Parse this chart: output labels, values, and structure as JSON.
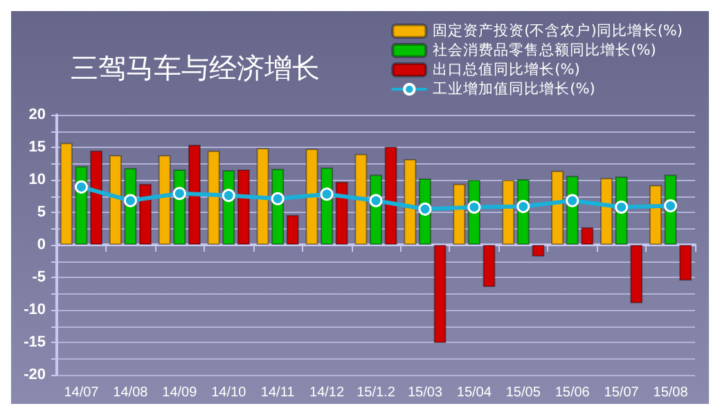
{
  "chart_data": {
    "type": "bar",
    "title": "三驾马车与经济增长",
    "categories": [
      "14/07",
      "14/08",
      "14/09",
      "14/10",
      "14/11",
      "14/12",
      "15/1.2",
      "15/03",
      "15/04",
      "15/05",
      "15/06",
      "15/07",
      "15/08"
    ],
    "series": [
      {
        "name": "固定资产投资(不含农户)同比增长(%)",
        "color": "#f5b000",
        "values": [
          15.7,
          13.8,
          13.8,
          14.5,
          14.9,
          14.8,
          14.0,
          13.2,
          9.4,
          10.0,
          11.4,
          10.3,
          9.2
        ]
      },
      {
        "name": "社会消费品零售总额同比增长(%)",
        "color": "#00c000",
        "values": [
          12.1,
          11.8,
          11.6,
          11.5,
          11.7,
          11.9,
          10.8,
          10.2,
          10.0,
          10.1,
          10.6,
          10.5,
          10.8
        ]
      },
      {
        "name": "出口总值同比增长(%)",
        "color": "#d00000",
        "values": [
          14.5,
          9.4,
          15.4,
          11.6,
          4.6,
          9.7,
          15.1,
          -15.1,
          -6.5,
          -1.8,
          2.7,
          -9.0,
          -5.5
        ]
      },
      {
        "name": "工业增加值同比增长(%)",
        "type": "line",
        "color": "#1ab0d8",
        "values": [
          8.9,
          6.8,
          7.9,
          7.6,
          7.1,
          7.8,
          6.8,
          5.5,
          5.8,
          5.9,
          6.8,
          5.8,
          6.0
        ]
      }
    ],
    "ylim": [
      -20,
      20
    ],
    "yticks": [
      -20,
      {
        "value": -17.5,
        "label": null
      },
      -15,
      {
        "value": -12.5,
        "label": null
      },
      -10,
      {
        "value": -7.5,
        "label": null
      },
      -5,
      {
        "value": -2.5,
        "label": null
      },
      0,
      {
        "value": 2.5,
        "label": null
      },
      5,
      {
        "value": 7.5,
        "label": null
      },
      10,
      {
        "value": 12.5,
        "label": null
      },
      15,
      {
        "value": 17.5,
        "label": null
      },
      20
    ],
    "grid": "y",
    "legend": "top right",
    "marker": "circle",
    "line_style": "solid"
  }
}
